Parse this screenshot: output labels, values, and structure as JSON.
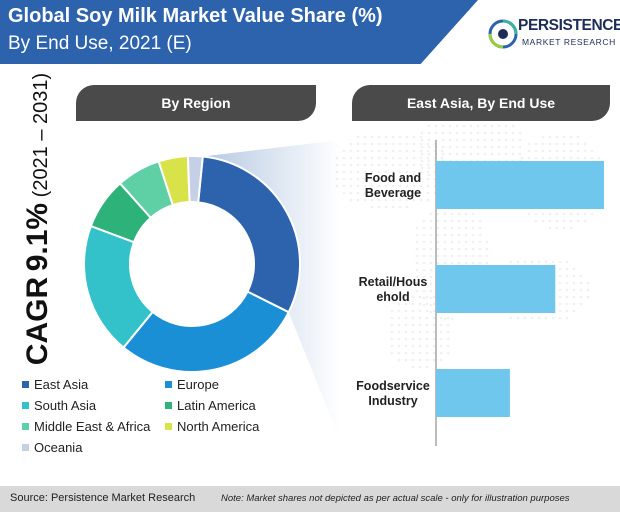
{
  "header": {
    "title_line1": "Global Soy Milk Market Value Share (%)",
    "title_line2": "By End Use, 2021 (E)"
  },
  "logo": {
    "name": "PERSISTENCE",
    "subtitle": "MARKET RESEARCH",
    "colors": [
      "#2d63ad",
      "#3bb3a0",
      "#9acb3b",
      "#1d2d5a"
    ]
  },
  "cagr": {
    "label": "CAGR",
    "value": "9.1%",
    "period": "(2021 – 2031)"
  },
  "left_panel": {
    "title": "By Region"
  },
  "right_panel": {
    "title": "East Asia, By End Use"
  },
  "chart_data": [
    {
      "type": "pie",
      "title": "By Region",
      "donut": true,
      "legend_position": "bottom",
      "categories": [
        "East Asia",
        "Europe",
        "South Asia",
        "Latin America",
        "Middle East & Africa",
        "North America",
        "Oceania"
      ],
      "values": [
        28,
        26,
        18,
        7,
        6,
        4,
        2
      ],
      "colors": [
        "#2d63ad",
        "#1a8fd6",
        "#33c2c9",
        "#2db37a",
        "#5fcfa5",
        "#d8e34a",
        "#c5cfe6"
      ]
    },
    {
      "type": "bar",
      "orientation": "horizontal",
      "title": "East Asia, By End Use",
      "categories": [
        "Food and Beverage",
        "Retail/Household",
        "Foodservice Industry"
      ],
      "category_labels": [
        [
          "Food and",
          "Beverage"
        ],
        [
          "Retail/Hous",
          "ehold"
        ],
        [
          "Foodservice",
          "Industry"
        ]
      ],
      "values": [
        100,
        71,
        44
      ],
      "xlim": [
        0,
        100
      ],
      "color": "#6fc7ee"
    }
  ],
  "footer": {
    "source": "Source: Persistence Market Research",
    "note": "Note: Market shares not depicted as per actual scale - only for illustration purposes"
  }
}
